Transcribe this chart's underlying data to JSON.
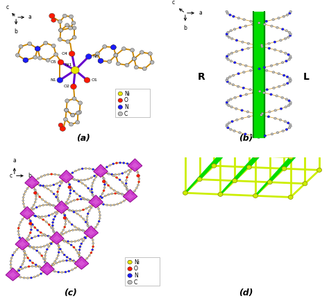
{
  "panels": [
    "(a)",
    "(b)",
    "(c)",
    "(d)"
  ],
  "bg_color": "#ffffff",
  "legend_items": [
    {
      "label": "Ni",
      "color": "#e8e800"
    },
    {
      "label": "O",
      "color": "#ff1a00"
    },
    {
      "label": "N",
      "color": "#1a1aff"
    },
    {
      "label": "C",
      "color": "#c0c0c0"
    }
  ],
  "bond_color": "#cc8800",
  "coord_bond_color": "#6600cc",
  "ni_color": "#e8e800",
  "o_color": "#ff1a00",
  "n_color": "#1a1aff",
  "c_color": "#b8b8b8",
  "green_color": "#00dd00",
  "yellow_color": "#ccee00",
  "purple_color": "#cc33cc",
  "panel_fontsize": 9
}
